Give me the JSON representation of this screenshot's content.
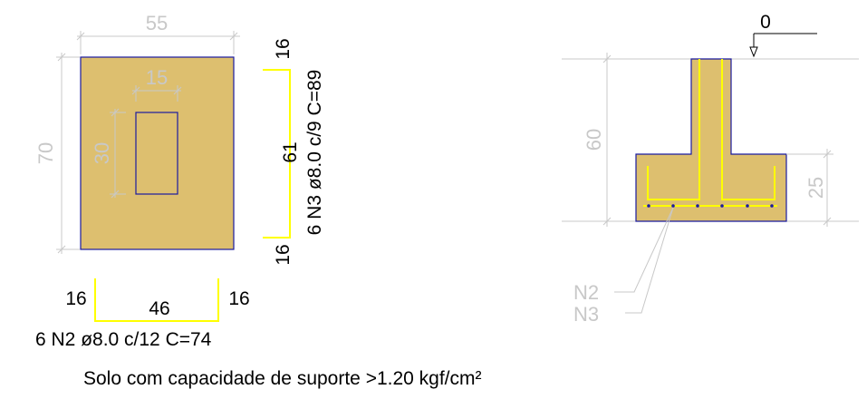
{
  "plan_view": {
    "width_dim": "55",
    "height_dim": "70",
    "hole_width_dim": "15",
    "hole_height_dim": "30"
  },
  "bar_n3": {
    "top_hook": "16",
    "length": "61",
    "bottom_hook": "16",
    "spec": "6 N3 ø8.0 c/9 C=89"
  },
  "bar_n2": {
    "left_hook": "16",
    "length": "46",
    "right_hook": "16",
    "spec": "6 N2 ø8.0 c/12 C=74"
  },
  "section_view": {
    "level_mark": "0",
    "height_dim": "60",
    "base_height_dim": "25",
    "leader_n2": "N2",
    "leader_n3": "N3"
  },
  "footer_note": "Solo com capacidade de suporte >1.20 kgf/cm²",
  "colors": {
    "concrete_fill": "#ddbf6f",
    "outline": "#1a1aa0",
    "rebar": "#ffff00",
    "dimension": "#c8c8c8"
  }
}
